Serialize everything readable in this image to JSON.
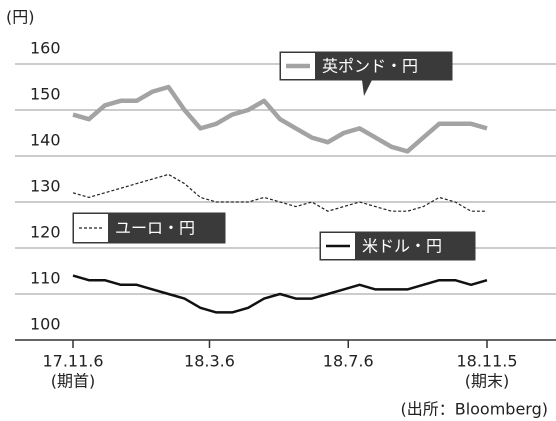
{
  "chart_data": {
    "type": "line",
    "y_unit_label": "(円)",
    "source": "(出所：Bloomberg)",
    "start_note": "(期首)",
    "end_note": "(期末)",
    "x": [
      "17.11.6",
      "17.11.20",
      "17.12.4",
      "17.12.18",
      "18.1.1",
      "18.1.15",
      "18.1.29",
      "18.2.12",
      "18.2.26",
      "18.3.12",
      "18.3.26",
      "18.4.9",
      "18.4.23",
      "18.5.7",
      "18.5.21",
      "18.6.4",
      "18.6.18",
      "18.7.2",
      "18.7.16",
      "18.7.30",
      "18.8.13",
      "18.8.27",
      "18.9.10",
      "18.9.24",
      "18.10.8",
      "18.10.22",
      "18.11.5"
    ],
    "xlim": [
      "17.11.6",
      "18.11.5"
    ],
    "xticks": [
      "17.11.6",
      "18.3.6",
      "18.7.6",
      "18.11.5"
    ],
    "ylim": [
      100,
      160
    ],
    "yticks": [
      100,
      110,
      120,
      130,
      140,
      150,
      160
    ],
    "grid": true,
    "series": [
      {
        "name": "英ポンド・円",
        "color": "#a3a3a3",
        "values": [
          149,
          148,
          151,
          152,
          152,
          154,
          155,
          150,
          146,
          147,
          149,
          150,
          152,
          148,
          146,
          144,
          143,
          145,
          146,
          144,
          142,
          141,
          144,
          147,
          147,
          147,
          146
        ]
      },
      {
        "name": "ユーロ・円",
        "color": "#222222",
        "values": [
          132,
          131,
          132,
          133,
          134,
          135,
          136,
          134,
          131,
          130,
          130,
          130,
          131,
          130,
          129,
          130,
          128,
          129,
          130,
          129,
          128,
          128,
          129,
          131,
          130,
          128,
          128
        ]
      },
      {
        "name": "米ドル・円",
        "color": "#111111",
        "values": [
          114,
          113,
          113,
          112,
          112,
          111,
          110,
          109,
          107,
          106,
          106,
          107,
          109,
          110,
          109,
          109,
          110,
          111,
          112,
          111,
          111,
          111,
          112,
          113,
          113,
          112,
          113
        ]
      }
    ]
  }
}
